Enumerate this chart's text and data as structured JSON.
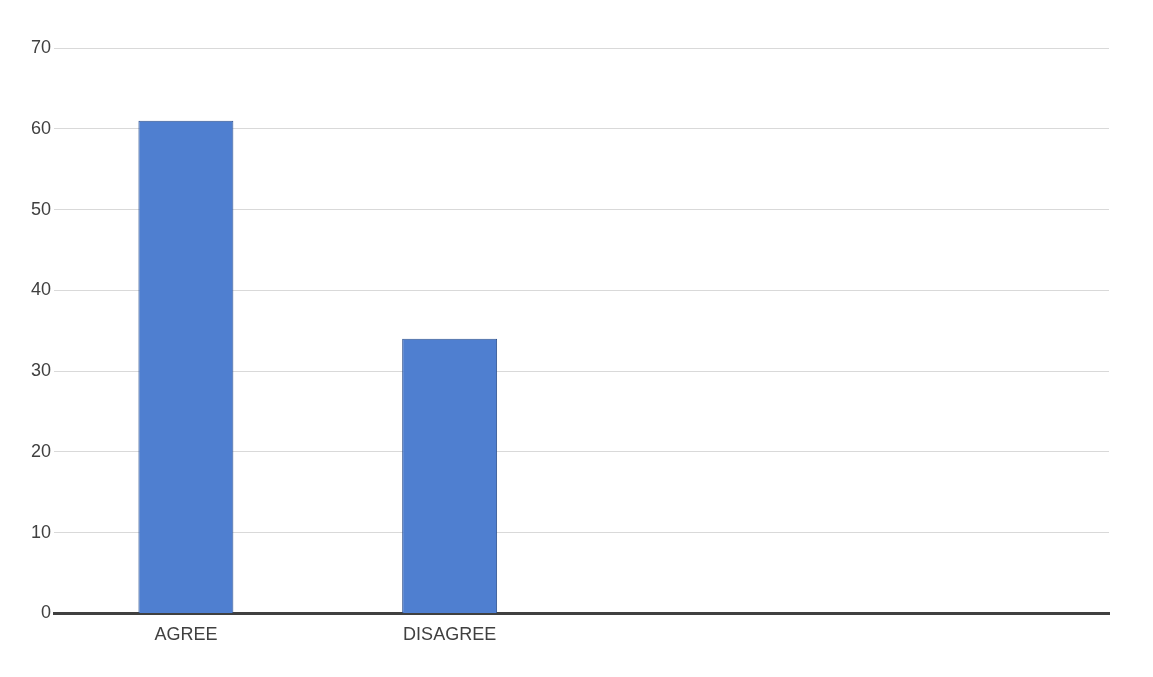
{
  "chart_data": {
    "type": "bar",
    "categories": [
      "AGREE",
      "DISAGREE",
      null,
      null
    ],
    "values": [
      61,
      34,
      null,
      null
    ],
    "color": "#4f7fd0",
    "ylim": [
      0,
      70
    ],
    "yticks": [
      0,
      10,
      20,
      30,
      40,
      50,
      60,
      70
    ],
    "grid": "y",
    "legend": false
  }
}
